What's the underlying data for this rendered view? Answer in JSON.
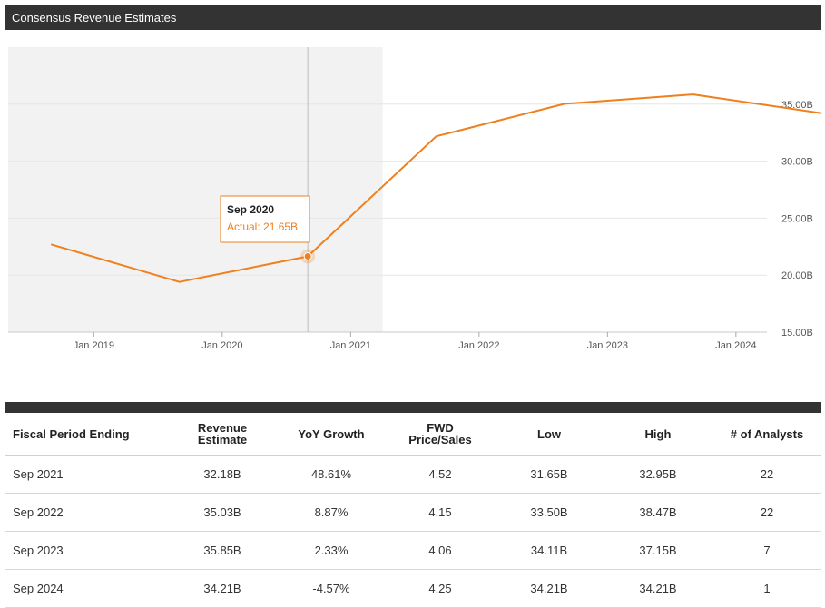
{
  "header": {
    "title": "Consensus Revenue Estimates"
  },
  "colors": {
    "line": "#f07f1d",
    "header_bg": "#333333",
    "actual_shade": "#f2f2f2",
    "grid": "#e6e6e6"
  },
  "chart_data": {
    "type": "line",
    "title": "",
    "xlabel": "",
    "ylabel": "",
    "series": [
      {
        "points": [
          {
            "x": "2018-09",
            "y": 22.7
          },
          {
            "x": "2019-09",
            "y": 19.4
          },
          {
            "x": "2020-09",
            "y": 21.65
          },
          {
            "x": "2021-09",
            "y": 32.18
          },
          {
            "x": "2022-09",
            "y": 35.03
          },
          {
            "x": "2023-09",
            "y": 35.85
          },
          {
            "x": "2024-09",
            "y": 34.21
          }
        ]
      }
    ],
    "x_ticks": [
      "Jan 2019",
      "Jan 2020",
      "Jan 2021",
      "Jan 2022",
      "Jan 2023",
      "Jan 2024"
    ],
    "y_ticks": [
      "15.00B",
      "20.00B",
      "25.00B",
      "30.00B",
      "35.00B"
    ],
    "ylim": [
      15,
      40
    ],
    "actual_period_end": "2021-04",
    "grid": true,
    "legend": "none",
    "tooltip": {
      "title": "Sep 2020",
      "label": "Actual: 21.65B",
      "x": "2020-09",
      "y": 21.65
    }
  },
  "table": {
    "headers": [
      [
        "Fiscal Period Ending"
      ],
      [
        "Revenue",
        "Estimate"
      ],
      [
        "YoY Growth"
      ],
      [
        "FWD",
        "Price/Sales"
      ],
      [
        "Low"
      ],
      [
        "High"
      ],
      [
        "# of Analysts"
      ]
    ],
    "rows": [
      [
        "Sep 2021",
        "32.18B",
        "48.61%",
        "4.52",
        "31.65B",
        "32.95B",
        "22"
      ],
      [
        "Sep 2022",
        "35.03B",
        "8.87%",
        "4.15",
        "33.50B",
        "38.47B",
        "22"
      ],
      [
        "Sep 2023",
        "35.85B",
        "2.33%",
        "4.06",
        "34.11B",
        "37.15B",
        "7"
      ],
      [
        "Sep 2024",
        "34.21B",
        "-4.57%",
        "4.25",
        "34.21B",
        "34.21B",
        "1"
      ]
    ]
  }
}
